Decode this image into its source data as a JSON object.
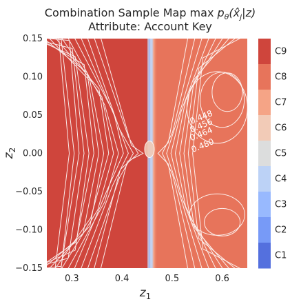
{
  "chart_data": {
    "type": "heatmap",
    "title_main": "Combination Sample Map max ",
    "title_math": "p",
    "title_math_sub": "θ",
    "title_math_rest": "(x̂",
    "title_math_sub2": "j",
    "title_math_end": "|z)",
    "subtitle": "Attribute: Account Key",
    "xlabel": "z",
    "xlabel_sub": "1",
    "ylabel": "z",
    "ylabel_sub": "2",
    "xlim": [
      0.25,
      0.65
    ],
    "ylim": [
      -0.15,
      0.15
    ],
    "x_ticks": [
      0.3,
      0.4,
      0.5,
      0.6
    ],
    "x_tick_labels": [
      "0.3",
      "0.4",
      "0.5",
      "0.6"
    ],
    "y_ticks": [
      0.15,
      0.1,
      0.05,
      0.0,
      -0.05,
      -0.1,
      -0.15
    ],
    "y_tick_labels": [
      "0.15",
      "0.10",
      "0.05",
      "0.00",
      "−0.05",
      "−0.10",
      "−0.15"
    ],
    "colorbar_labels": [
      "C9",
      "C8",
      "C7",
      "C6",
      "C5",
      "C4",
      "C3",
      "C2",
      "C1"
    ],
    "colorbar_colors": [
      "#cf453c",
      "#e7745b",
      "#f5a486",
      "#f2cbb7",
      "#dcdddd",
      "#bcd2f6",
      "#98b9fe",
      "#779af7",
      "#5470de"
    ],
    "regions": [
      {
        "class": "C9",
        "x_range": [
          0.25,
          0.452
        ],
        "color": "#cf453c"
      },
      {
        "class": "C8",
        "x_range": [
          0.468,
          0.65
        ],
        "color": "#e7745b"
      }
    ],
    "boundary_x": 0.455,
    "contour_labels": [
      {
        "text": "0.448",
        "x": 0.56,
        "y": 0.044
      },
      {
        "text": "0.456",
        "x": 0.56,
        "y": 0.033
      },
      {
        "text": "0.464",
        "x": 0.56,
        "y": 0.022
      },
      {
        "text": "0.480",
        "x": 0.563,
        "y": 0.007
      }
    ],
    "grid": true
  }
}
